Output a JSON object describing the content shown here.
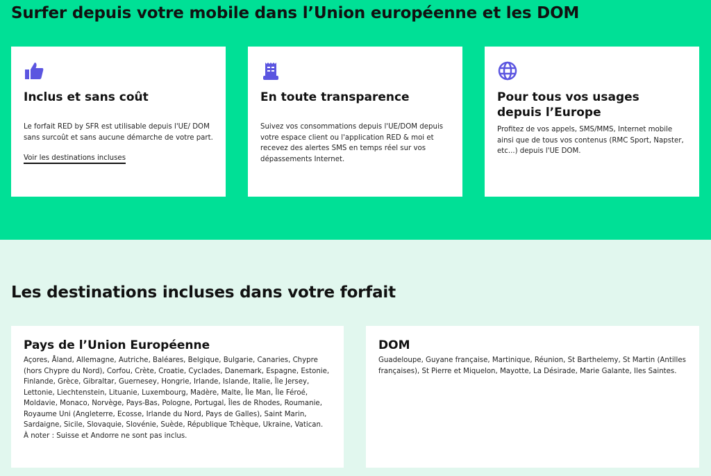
{
  "hero": {
    "title": "Surfer depuis votre mobile dans l’Union européenne et les DOM",
    "cards": [
      {
        "icon": "thumbs-up-icon",
        "title": "Inclus et sans coût",
        "text": "Le forfait RED by SFR est utilisable depuis l'UE/ DOM sans surcoût et sans aucune démarche de votre part.",
        "link": "Voir les destinations incluses"
      },
      {
        "icon": "receipt-icon",
        "title": "En toute transparence",
        "text": "Suivez vos consommations depuis l'UE/DOM depuis votre espace client ou l'application RED & moi et recevez des alertes SMS en temps réel sur vos dépassements Internet."
      },
      {
        "icon": "globe-icon",
        "title": "Pour tous vos usages depuis l’Europe",
        "text": "Profitez de vos appels, SMS/MMS, Internet mobile ainsi que de tous vos contenus (RMC Sport, Napster, etc...) depuis l'UE DOM."
      }
    ]
  },
  "destinations": {
    "title": "Les destinations incluses dans votre forfait",
    "eu": {
      "title": "Pays de l’Union Européenne",
      "text": "Açores, Åland, Allemagne, Autriche, Baléares, Belgique, Bulgarie, Canaries, Chypre (hors Chypre du Nord), Corfou, Crète, Croatie, Cyclades, Danemark, Espagne, Estonie, Finlande, Grèce, Gibraltar, Guernesey, Hongrie, Irlande, Islande, Italie, Île Jersey, Lettonie, Liechtenstein, Lituanie, Luxembourg, Madère, Malte, Île Man, Île Féroé, Moldavie, Monaco, Norvège, Pays-Bas, Pologne, Portugal, Îles de Rhodes, Roumanie, Royaume Uni (Angleterre, Ecosse, Irlande du Nord, Pays de Galles), Saint Marin, Sardaigne, Sicile, Slovaquie, Slovénie, Suède, République Tchèque, Ukraine, Vatican.",
      "note": "À noter : Suisse et Andorre ne sont pas inclus."
    },
    "dom": {
      "title": "DOM",
      "text": "Guadeloupe, Guyane française, Martinique, Réunion, St Barthelemy, St Martin (Antilles françaises), St Pierre et Miquelon, Mayotte, La Désirade, Marie Galante, Iles Saintes."
    }
  },
  "colors": {
    "brand_green": "#00e096",
    "light_green": "#e1f7ee",
    "icon_purple": "#5b55e0"
  }
}
